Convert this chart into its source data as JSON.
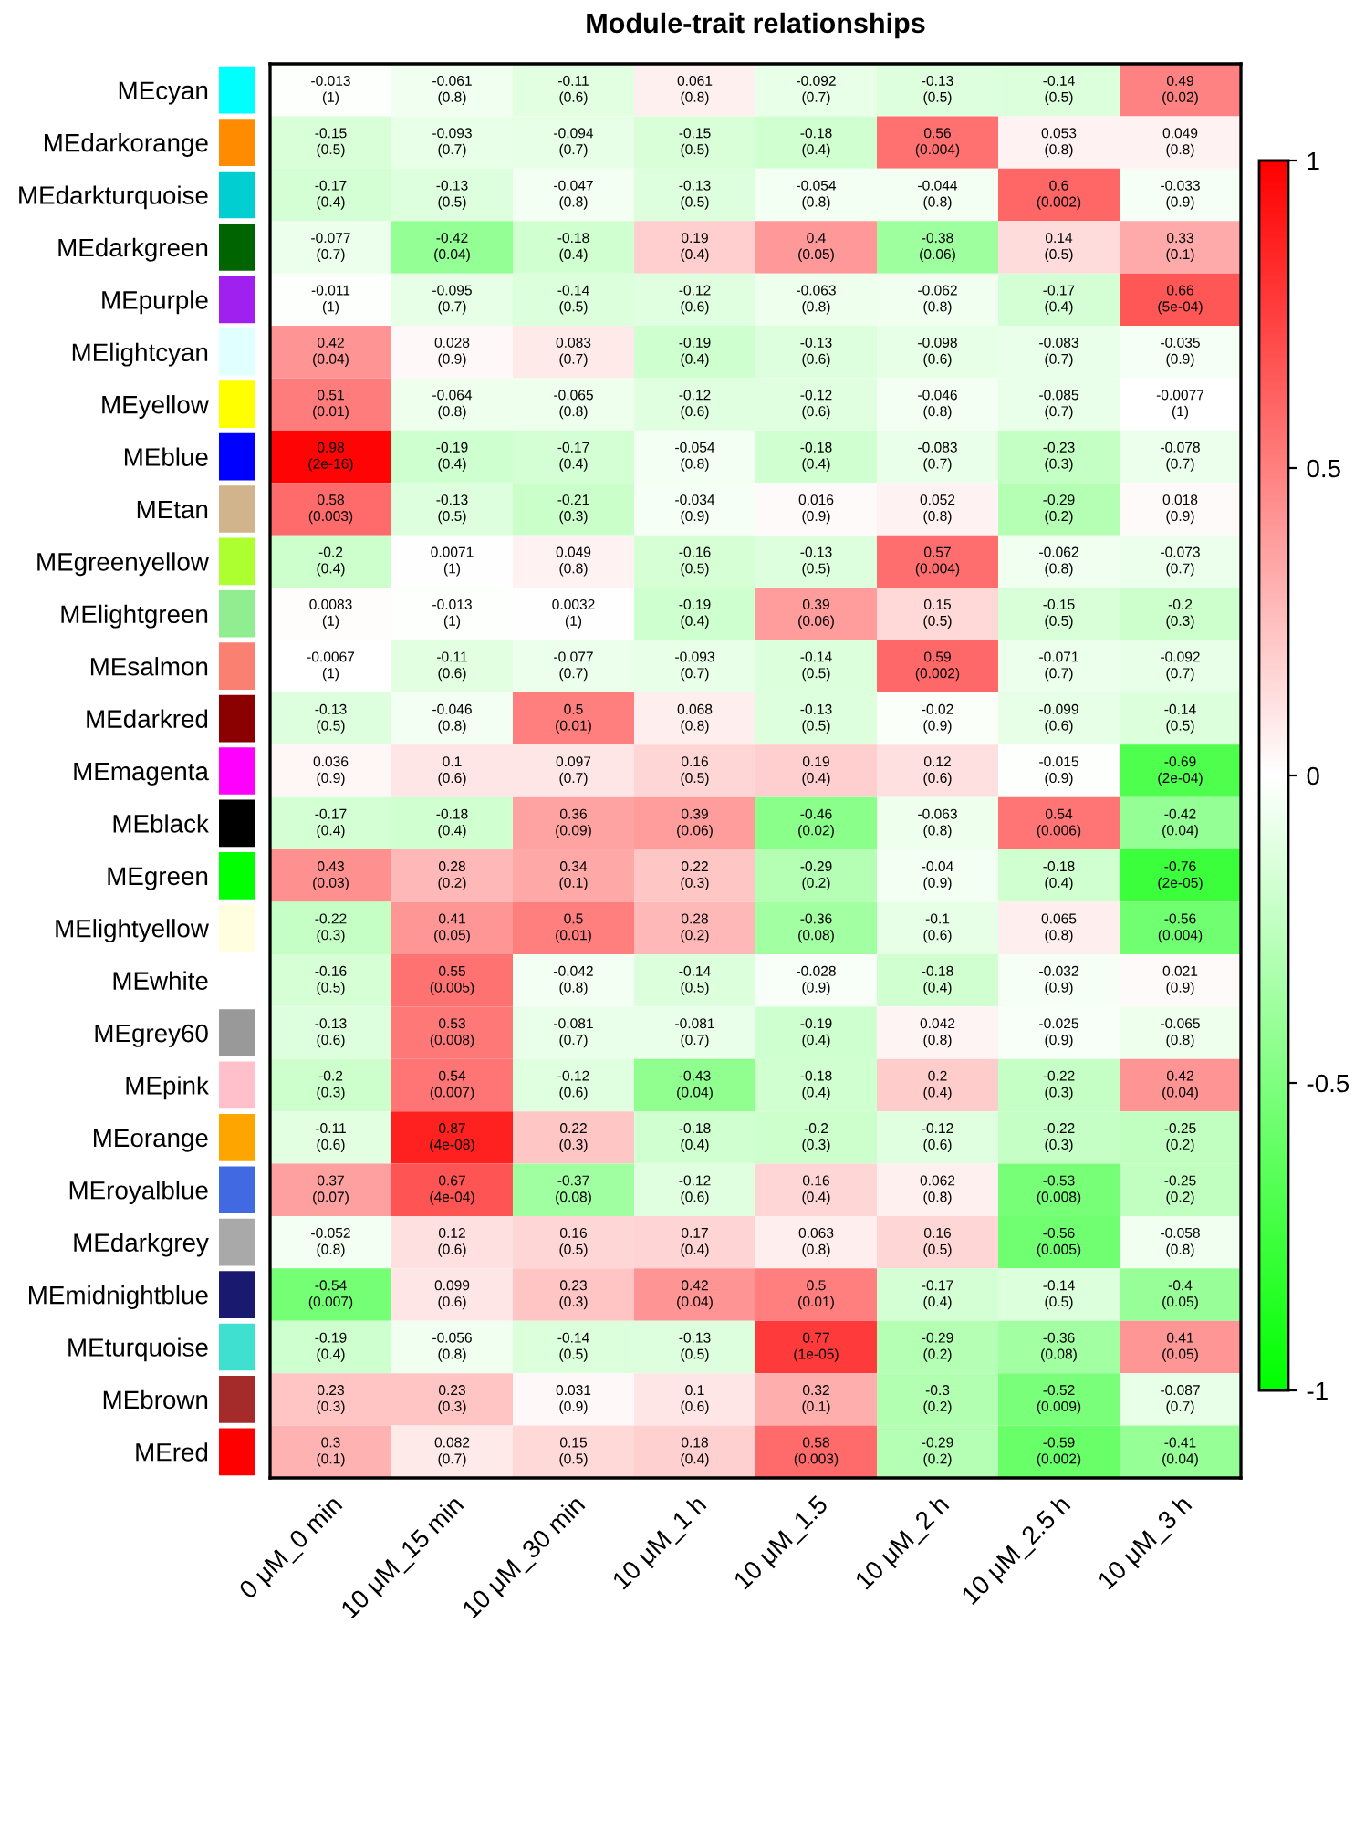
{
  "chart_data": {
    "type": "heatmap",
    "title": "Module-trait relationships",
    "categories": [
      "0 μM_0 min",
      "10 μM_15 min",
      "10 μM_30 min",
      "10 μM_1 h",
      "10 μM_1.5",
      "10 μM_2 h",
      "10 μM_2.5 h",
      "10 μM_3 h"
    ],
    "y_categories": [
      "MEcyan",
      "MEdarkorange",
      "MEdarkturquoise",
      "MEdarkgreen",
      "MEpurple",
      "MElightcyan",
      "MEyellow",
      "MEblue",
      "MEtan",
      "MEgreenyellow",
      "MElightgreen",
      "MEsalmon",
      "MEdarkred",
      "MEmagenta",
      "MEblack",
      "MEgreen",
      "MElightyellow",
      "MEwhite",
      "MEgrey60",
      "MEpink",
      "MEorange",
      "MEroyalblue",
      "MEdarkgrey",
      "MEmidnightblue",
      "MEturquoise",
      "MEbrown",
      "MEred"
    ],
    "cells": [
      [
        -0.013,
        -0.061,
        -0.11,
        0.061,
        -0.092,
        -0.13,
        -0.14,
        0.49
      ],
      [
        -0.15,
        -0.093,
        -0.094,
        -0.15,
        -0.18,
        0.56,
        0.053,
        0.049
      ],
      [
        -0.17,
        -0.13,
        -0.047,
        -0.13,
        -0.054,
        -0.044,
        0.6,
        -0.033
      ],
      [
        -0.077,
        -0.42,
        -0.18,
        0.19,
        0.4,
        -0.38,
        0.14,
        0.33
      ],
      [
        -0.011,
        -0.095,
        -0.14,
        -0.12,
        -0.063,
        -0.062,
        -0.17,
        0.66
      ],
      [
        0.42,
        0.028,
        0.083,
        -0.19,
        -0.13,
        -0.098,
        -0.083,
        -0.035
      ],
      [
        0.51,
        -0.064,
        -0.065,
        -0.12,
        -0.12,
        -0.046,
        -0.085,
        -0.0077
      ],
      [
        0.98,
        -0.19,
        -0.17,
        -0.054,
        -0.18,
        -0.083,
        -0.23,
        -0.078
      ],
      [
        0.58,
        -0.13,
        -0.21,
        -0.034,
        0.016,
        0.052,
        -0.29,
        0.018
      ],
      [
        -0.2,
        0.0071,
        0.049,
        -0.16,
        -0.13,
        0.57,
        -0.062,
        -0.073
      ],
      [
        0.0083,
        -0.013,
        0.0032,
        -0.19,
        0.39,
        0.15,
        -0.15,
        -0.2
      ],
      [
        -0.0067,
        -0.11,
        -0.077,
        -0.093,
        -0.14,
        0.59,
        -0.071,
        -0.092
      ],
      [
        -0.13,
        -0.046,
        0.5,
        0.068,
        -0.13,
        -0.02,
        -0.099,
        -0.14
      ],
      [
        0.036,
        0.1,
        0.097,
        0.16,
        0.19,
        0.12,
        -0.015,
        -0.69
      ],
      [
        -0.17,
        -0.18,
        0.36,
        0.39,
        -0.46,
        -0.063,
        0.54,
        -0.42
      ],
      [
        0.43,
        0.28,
        0.34,
        0.22,
        -0.29,
        -0.04,
        -0.18,
        -0.76
      ],
      [
        -0.22,
        0.41,
        0.5,
        0.28,
        -0.36,
        -0.1,
        0.065,
        -0.56
      ],
      [
        -0.16,
        0.55,
        -0.042,
        -0.14,
        -0.028,
        -0.18,
        -0.032,
        0.021
      ],
      [
        -0.13,
        0.53,
        -0.081,
        -0.081,
        -0.19,
        0.042,
        -0.025,
        -0.065
      ],
      [
        -0.2,
        0.54,
        -0.12,
        -0.43,
        -0.18,
        0.2,
        -0.22,
        0.42
      ],
      [
        -0.11,
        0.87,
        0.22,
        -0.18,
        -0.2,
        -0.12,
        -0.22,
        -0.25
      ],
      [
        0.37,
        0.67,
        -0.37,
        -0.12,
        0.16,
        0.062,
        -0.53,
        -0.25
      ],
      [
        -0.052,
        0.12,
        0.16,
        0.17,
        0.063,
        0.16,
        -0.56,
        -0.058
      ],
      [
        -0.54,
        0.099,
        0.23,
        0.42,
        0.5,
        -0.17,
        -0.14,
        -0.4
      ],
      [
        -0.19,
        -0.056,
        -0.14,
        -0.13,
        0.77,
        -0.29,
        -0.36,
        0.41
      ],
      [
        0.23,
        0.23,
        0.031,
        0.1,
        0.32,
        -0.3,
        -0.52,
        -0.087
      ],
      [
        0.3,
        0.082,
        0.15,
        0.18,
        0.58,
        -0.29,
        -0.59,
        -0.41
      ]
    ],
    "cell_labels": [
      [
        "-0.013\n(1)",
        "-0.061\n(0.8)",
        "-0.11\n(0.6)",
        "0.061\n(0.8)",
        "-0.092\n(0.7)",
        "-0.13\n(0.5)",
        "-0.14\n(0.5)",
        "0.49\n(0.02)"
      ],
      [
        "-0.15\n(0.5)",
        "-0.093\n(0.7)",
        "-0.094\n(0.7)",
        "-0.15\n(0.5)",
        "-0.18\n(0.4)",
        "0.56\n(0.004)",
        "0.053\n(0.8)",
        "0.049\n(0.8)"
      ],
      [
        "-0.17\n(0.4)",
        "-0.13\n(0.5)",
        "-0.047\n(0.8)",
        "-0.13\n(0.5)",
        "-0.054\n(0.8)",
        "-0.044\n(0.8)",
        "0.6\n(0.002)",
        "-0.033\n(0.9)"
      ],
      [
        "-0.077\n(0.7)",
        "-0.42\n(0.04)",
        "-0.18\n(0.4)",
        "0.19\n(0.4)",
        "0.4\n(0.05)",
        "-0.38\n(0.06)",
        "0.14\n(0.5)",
        "0.33\n(0.1)"
      ],
      [
        "-0.011\n(1)",
        "-0.095\n(0.7)",
        "-0.14\n(0.5)",
        "-0.12\n(0.6)",
        "-0.063\n(0.8)",
        "-0.062\n(0.8)",
        "-0.17\n(0.4)",
        "0.66\n(5e-04)"
      ],
      [
        "0.42\n(0.04)",
        "0.028\n(0.9)",
        "0.083\n(0.7)",
        "-0.19\n(0.4)",
        "-0.13\n(0.6)",
        "-0.098\n(0.6)",
        "-0.083\n(0.7)",
        "-0.035\n(0.9)"
      ],
      [
        "0.51\n(0.01)",
        "-0.064\n(0.8)",
        "-0.065\n(0.8)",
        "-0.12\n(0.6)",
        "-0.12\n(0.6)",
        "-0.046\n(0.8)",
        "-0.085\n(0.7)",
        "-0.0077\n(1)"
      ],
      [
        "0.98\n(2e-16)",
        "-0.19\n(0.4)",
        "-0.17\n(0.4)",
        "-0.054\n(0.8)",
        "-0.18\n(0.4)",
        "-0.083\n(0.7)",
        "-0.23\n(0.3)",
        "-0.078\n(0.7)"
      ],
      [
        "0.58\n(0.003)",
        "-0.13\n(0.5)",
        "-0.21\n(0.3)",
        "-0.034\n(0.9)",
        "0.016\n(0.9)",
        "0.052\n(0.8)",
        "-0.29\n(0.2)",
        "0.018\n(0.9)"
      ],
      [
        "-0.2\n(0.4)",
        "0.0071\n(1)",
        "0.049\n(0.8)",
        "-0.16\n(0.5)",
        "-0.13\n(0.5)",
        "0.57\n(0.004)",
        "-0.062\n(0.8)",
        "-0.073\n(0.7)"
      ],
      [
        "0.0083\n(1)",
        "-0.013\n(1)",
        "0.0032\n(1)",
        "-0.19\n(0.4)",
        "0.39\n(0.06)",
        "0.15\n(0.5)",
        "-0.15\n(0.5)",
        "-0.2\n(0.3)"
      ],
      [
        "-0.0067\n(1)",
        "-0.11\n(0.6)",
        "-0.077\n(0.7)",
        "-0.093\n(0.7)",
        "-0.14\n(0.5)",
        "0.59\n(0.002)",
        "-0.071\n(0.7)",
        "-0.092\n(0.7)"
      ],
      [
        "-0.13\n(0.5)",
        "-0.046\n(0.8)",
        "0.5\n(0.01)",
        "0.068\n(0.8)",
        "-0.13\n(0.5)",
        "-0.02\n(0.9)",
        "-0.099\n(0.6)",
        "-0.14\n(0.5)"
      ],
      [
        "0.036\n(0.9)",
        "0.1\n(0.6)",
        "0.097\n(0.7)",
        "0.16\n(0.5)",
        "0.19\n(0.4)",
        "0.12\n(0.6)",
        "-0.015\n(0.9)",
        "-0.69\n(2e-04)"
      ],
      [
        "-0.17\n(0.4)",
        "-0.18\n(0.4)",
        "0.36\n(0.09)",
        "0.39\n(0.06)",
        "-0.46\n(0.02)",
        "-0.063\n(0.8)",
        "0.54\n(0.006)",
        "-0.42\n(0.04)"
      ],
      [
        "0.43\n(0.03)",
        "0.28\n(0.2)",
        "0.34\n(0.1)",
        "0.22\n(0.3)",
        "-0.29\n(0.2)",
        "-0.04\n(0.9)",
        "-0.18\n(0.4)",
        "-0.76\n(2e-05)"
      ],
      [
        "-0.22\n(0.3)",
        "0.41\n(0.05)",
        "0.5\n(0.01)",
        "0.28\n(0.2)",
        "-0.36\n(0.08)",
        "-0.1\n(0.6)",
        "0.065\n(0.8)",
        "-0.56\n(0.004)"
      ],
      [
        "-0.16\n(0.5)",
        "0.55\n(0.005)",
        "-0.042\n(0.8)",
        "-0.14\n(0.5)",
        "-0.028\n(0.9)",
        "-0.18\n(0.4)",
        "-0.032\n(0.9)",
        "0.021\n(0.9)"
      ],
      [
        "-0.13\n(0.6)",
        "0.53\n(0.008)",
        "-0.081\n(0.7)",
        "-0.081\n(0.7)",
        "-0.19\n(0.4)",
        "0.042\n(0.8)",
        "-0.025\n(0.9)",
        "-0.065\n(0.8)"
      ],
      [
        "-0.2\n(0.3)",
        "0.54\n(0.007)",
        "-0.12\n(0.6)",
        "-0.43\n(0.04)",
        "-0.18\n(0.4)",
        "0.2\n(0.4)",
        "-0.22\n(0.3)",
        "0.42\n(0.04)"
      ],
      [
        "-0.11\n(0.6)",
        "0.87\n(4e-08)",
        "0.22\n(0.3)",
        "-0.18\n(0.4)",
        "-0.2\n(0.3)",
        "-0.12\n(0.6)",
        "-0.22\n(0.3)",
        "-0.25\n(0.2)"
      ],
      [
        "0.37\n(0.07)",
        "0.67\n(4e-04)",
        "-0.37\n(0.08)",
        "-0.12\n(0.6)",
        "0.16\n(0.4)",
        "0.062\n(0.8)",
        "-0.53\n(0.008)",
        "-0.25\n(0.2)"
      ],
      [
        "-0.052\n(0.8)",
        "0.12\n(0.6)",
        "0.16\n(0.5)",
        "0.17\n(0.4)",
        "0.063\n(0.8)",
        "0.16\n(0.5)",
        "-0.56\n(0.005)",
        "-0.058\n(0.8)"
      ],
      [
        "-0.54\n(0.007)",
        "0.099\n(0.6)",
        "0.23\n(0.3)",
        "0.42\n(0.04)",
        "0.5\n(0.01)",
        "-0.17\n(0.4)",
        "-0.14\n(0.5)",
        "-0.4\n(0.05)"
      ],
      [
        "-0.19\n(0.4)",
        "-0.056\n(0.8)",
        "-0.14\n(0.5)",
        "-0.13\n(0.5)",
        "0.77\n(1e-05)",
        "-0.29\n(0.2)",
        "-0.36\n(0.08)",
        "0.41\n(0.05)"
      ],
      [
        "0.23\n(0.3)",
        "0.23\n(0.3)",
        "0.031\n(0.9)",
        "0.1\n(0.6)",
        "0.32\n(0.1)",
        "-0.3\n(0.2)",
        "-0.52\n(0.009)",
        "-0.087\n(0.7)"
      ],
      [
        "0.3\n(0.1)",
        "0.082\n(0.7)",
        "0.15\n(0.5)",
        "0.18\n(0.4)",
        "0.58\n(0.003)",
        "-0.29\n(0.2)",
        "-0.59\n(0.002)",
        "-0.41\n(0.04)"
      ]
    ],
    "clim": [
      -1,
      1
    ],
    "cticks": [
      -1,
      -0.5,
      0,
      0.5,
      1
    ]
  }
}
